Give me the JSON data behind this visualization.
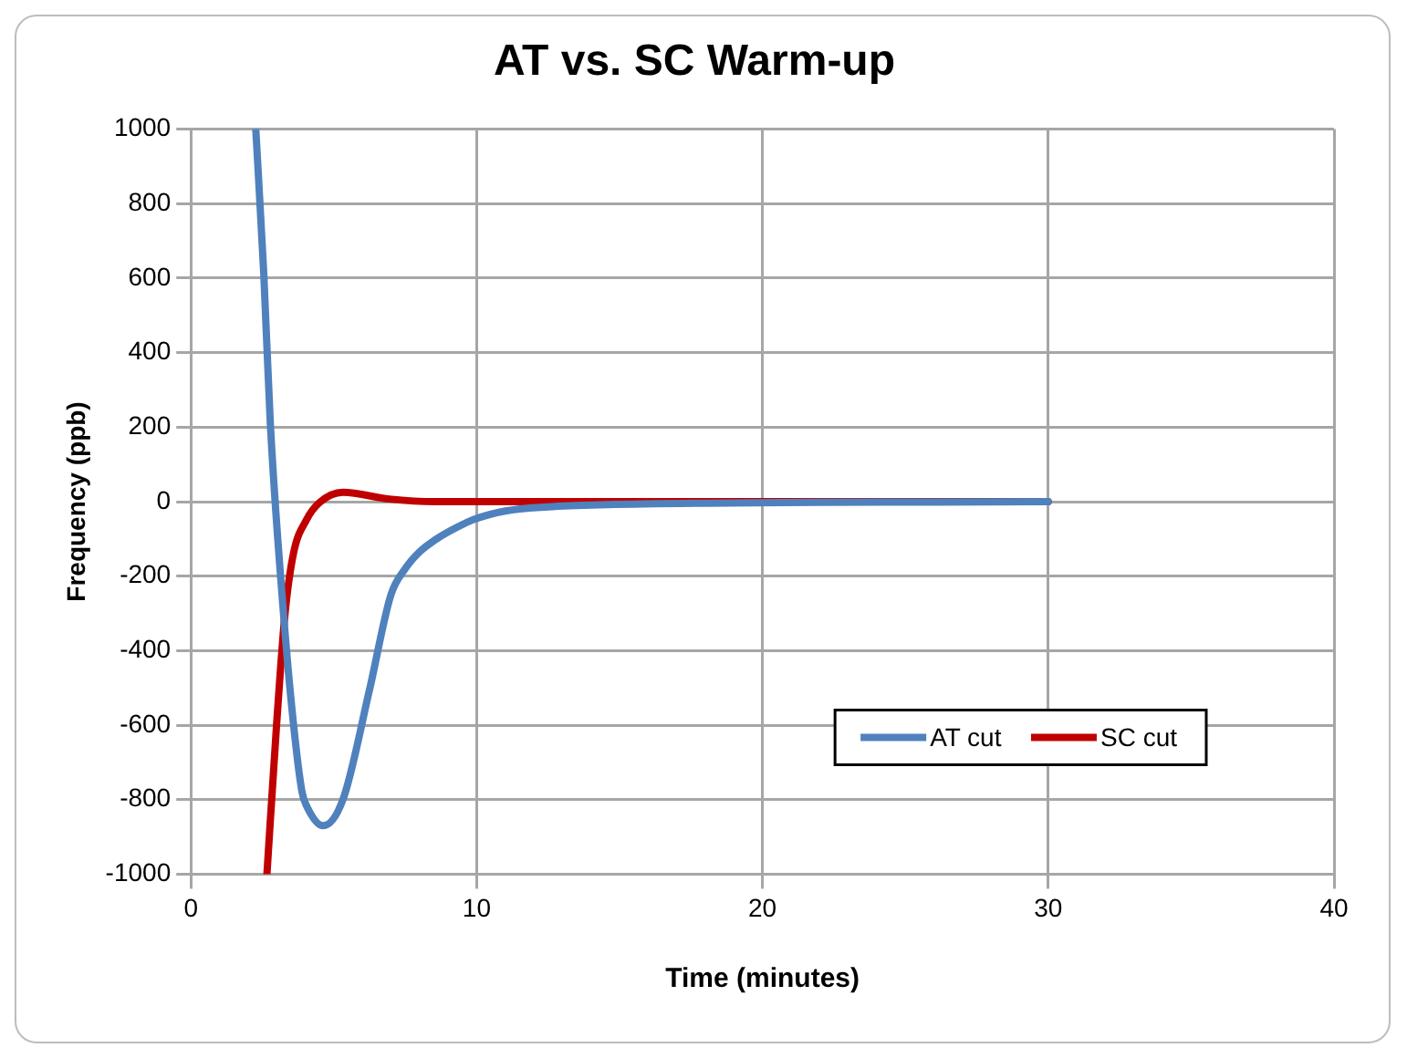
{
  "chart_data": {
    "type": "line",
    "title": "AT vs. SC Warm-up",
    "xlabel": "Time (minutes)",
    "ylabel": "Frequency (ppb)",
    "xlim": [
      0,
      40
    ],
    "xticks": [
      0,
      10,
      20,
      30,
      40
    ],
    "ylim": [
      -1000,
      1000
    ],
    "yticks": [
      -1000,
      -800,
      -600,
      -400,
      -200,
      0,
      200,
      400,
      600,
      800,
      1000
    ],
    "grid": true,
    "legend": "bottom right",
    "marker": "none",
    "line_style": "solid",
    "series": [
      {
        "name": "AT cut",
        "color": "#4f81bd",
        "x": [
          2.27,
          2.55,
          2.78,
          3.24,
          3.59,
          3.89,
          4.05,
          4.63,
          5.32,
          6.25,
          7.0,
          7.5,
          8.0,
          8.56,
          9.03,
          9.9,
          11,
          12.5,
          14.6,
          18,
          22,
          26,
          30
        ],
        "values": [
          1000,
          612,
          209,
          -300,
          -597,
          -780,
          -817,
          -870,
          -800,
          -505,
          -250,
          -180,
          -135,
          -102,
          -80,
          -48,
          -25,
          -14,
          -8,
          -4,
          -2,
          -1,
          0
        ]
      },
      {
        "name": "SC cut",
        "color": "#c00000",
        "x": [
          2.66,
          3.0,
          3.29,
          3.59,
          4.05,
          4.51,
          5.32,
          6.94,
          8.56,
          12,
          16,
          20,
          25,
          30
        ],
        "values": [
          -1000,
          -597,
          -304,
          -139,
          -48,
          -2,
          25,
          7,
          0,
          0,
          0,
          0,
          0,
          0
        ]
      }
    ]
  }
}
